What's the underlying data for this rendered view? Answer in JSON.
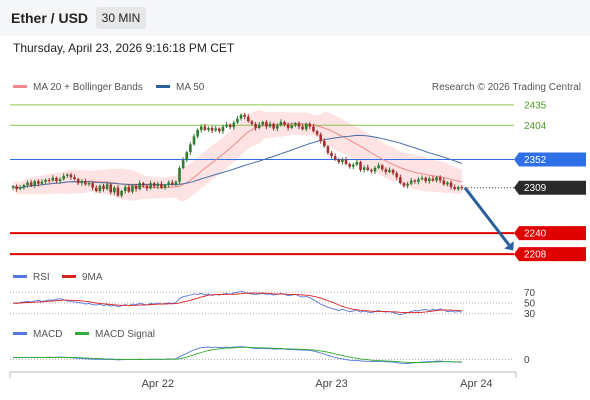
{
  "header": {
    "title": "Ether / USD",
    "timeframe": "30 MIN"
  },
  "datetime": "Thursday, April 23, 2026 9:16:18 PM CET",
  "attribution": "Research © 2026 Trading Central",
  "colors": {
    "resistance": "#8bc34a",
    "pivot": "#2f6fe8",
    "support": "#e00000",
    "last": "#2a2a2a",
    "ma20": "#f08a8a",
    "band": "#fde3e3",
    "ma50": "#4a6fa8",
    "bull": "#2f7d2f",
    "bear": "#a33030",
    "rsi": "#5577dd",
    "rsi_ma": "#dd2222",
    "macd": "#5577dd",
    "macd_signal": "#33aa33",
    "arrow": "#2a5f9e"
  },
  "chart_data": [
    {
      "type": "candlestick",
      "legend": [
        {
          "name": "MA 20 + Bollinger Bands",
          "color": "#f08a8a"
        },
        {
          "name": "MA 50",
          "color": "#2a5f9e"
        }
      ],
      "ylim": [
        2196,
        2447
      ],
      "x_ticks": [
        {
          "label": "Apr 22",
          "index": 40
        },
        {
          "label": "Apr 23",
          "index": 88
        },
        {
          "label": "Apr 24",
          "index": 128
        }
      ],
      "levels": [
        {
          "value": 2435,
          "label": "2435",
          "kind": "resistance"
        },
        {
          "value": 2404,
          "label": "2404",
          "kind": "resistance"
        },
        {
          "value": 2352,
          "label": "2352",
          "kind": "pivot"
        },
        {
          "value": 2309,
          "label": "2309",
          "kind": "last"
        },
        {
          "value": 2240,
          "label": "2240",
          "kind": "support"
        },
        {
          "value": 2208,
          "label": "2208",
          "kind": "support"
        }
      ],
      "close": [
        2311,
        2307,
        2309,
        2313,
        2317,
        2312,
        2319,
        2315,
        2318,
        2321,
        2320,
        2324,
        2319,
        2322,
        2327,
        2329,
        2325,
        2322,
        2316,
        2319,
        2314,
        2316,
        2309,
        2304,
        2312,
        2307,
        2314,
        2302,
        2309,
        2297,
        2304,
        2310,
        2303,
        2312,
        2307,
        2316,
        2312,
        2308,
        2316,
        2311,
        2315,
        2309,
        2313,
        2317,
        2314,
        2318,
        2339,
        2351,
        2363,
        2375,
        2387,
        2397,
        2402,
        2397,
        2400,
        2396,
        2399,
        2395,
        2402,
        2405,
        2401,
        2408,
        2414,
        2420,
        2417,
        2410,
        2406,
        2400,
        2405,
        2409,
        2402,
        2406,
        2399,
        2404,
        2409,
        2405,
        2400,
        2404,
        2407,
        2402,
        2398,
        2406,
        2402,
        2395,
        2390,
        2380,
        2372,
        2362,
        2357,
        2352,
        2348,
        2352,
        2345,
        2341,
        2344,
        2348,
        2336,
        2340,
        2336,
        2334,
        2339,
        2343,
        2337,
        2333,
        2336,
        2331,
        2325,
        2316,
        2312,
        2315,
        2320,
        2318,
        2322,
        2324,
        2319,
        2323,
        2320,
        2325,
        2320,
        2314,
        2317,
        2310,
        2307,
        2310,
        2309
      ],
      "bollinger": {
        "upper_offset_max": 26,
        "lower_offset_max": 26
      },
      "forecast_target": 2222
    },
    {
      "type": "line",
      "legend": [
        {
          "name": "RSI",
          "color": "#5577dd"
        },
        {
          "name": "9MA",
          "color": "#dd2222"
        }
      ],
      "ylim": [
        22,
        78
      ],
      "levels": [
        {
          "value": 70,
          "label": "70"
        },
        {
          "value": 50,
          "label": "50"
        },
        {
          "value": 30,
          "label": "30"
        }
      ],
      "rsi": [
        50,
        49,
        51,
        52,
        53,
        52,
        54,
        55,
        53,
        54,
        56,
        55,
        57,
        58,
        56,
        54,
        53,
        52,
        51,
        50,
        48,
        49,
        47,
        46,
        48,
        45,
        47,
        44,
        46,
        43,
        45,
        47,
        45,
        48,
        47,
        49,
        48,
        46,
        49,
        48,
        50,
        48,
        49,
        50,
        49,
        51,
        58,
        62,
        63,
        65,
        67,
        66,
        68,
        65,
        67,
        64,
        66,
        65,
        67,
        68,
        66,
        69,
        70,
        72,
        70,
        68,
        67,
        66,
        67,
        68,
        66,
        67,
        65,
        66,
        68,
        66,
        64,
        65,
        66,
        63,
        61,
        62,
        60,
        56,
        52,
        48,
        45,
        42,
        40,
        38,
        36,
        38,
        36,
        34,
        35,
        37,
        33,
        35,
        33,
        32,
        34,
        36,
        34,
        33,
        34,
        32,
        30,
        28,
        30,
        32,
        34,
        36,
        35,
        37,
        38,
        36,
        38,
        37,
        39,
        37,
        34,
        35,
        33,
        34,
        33
      ]
    },
    {
      "type": "line",
      "legend": [
        {
          "name": "MACD",
          "color": "#5577dd"
        },
        {
          "name": "MACD Signal",
          "color": "#33aa33"
        }
      ],
      "ylim": [
        -6,
        14
      ],
      "levels": [
        {
          "value": 0,
          "label": "0"
        }
      ],
      "macd": [
        1.5,
        1.4,
        1.3,
        1.4,
        1.5,
        1.4,
        1.5,
        1.6,
        1.5,
        1.6,
        1.7,
        1.6,
        1.7,
        1.8,
        1.7,
        1.5,
        1.3,
        1.1,
        0.9,
        0.8,
        0.6,
        0.5,
        0.3,
        0.2,
        0.3,
        0.1,
        0.2,
        0.0,
        0.1,
        -0.2,
        -0.1,
        0.1,
        0.0,
        0.2,
        0.1,
        0.3,
        0.2,
        0.1,
        0.3,
        0.2,
        0.3,
        0.2,
        0.3,
        0.4,
        0.5,
        0.6,
        2.0,
        3.2,
        4.5,
        5.8,
        6.9,
        7.8,
        8.6,
        8.8,
        9.0,
        8.7,
        8.9,
        8.6,
        8.8,
        8.9,
        8.7,
        8.9,
        9.1,
        9.2,
        9.0,
        8.6,
        8.3,
        8.0,
        8.0,
        8.1,
        7.8,
        7.9,
        7.6,
        7.6,
        7.7,
        7.5,
        7.2,
        7.1,
        7.1,
        6.9,
        6.7,
        6.8,
        6.6,
        6.1,
        5.5,
        4.7,
        3.9,
        3.1,
        2.3,
        1.5,
        0.9,
        0.6,
        0.1,
        -0.4,
        -0.6,
        -0.5,
        -1.0,
        -1.1,
        -1.3,
        -1.4,
        -1.3,
        -1.2,
        -1.4,
        -1.6,
        -1.6,
        -1.8,
        -2.1,
        -2.6,
        -2.9,
        -2.8,
        -2.5,
        -2.3,
        -2.0,
        -1.7,
        -1.6,
        -1.4,
        -1.3,
        -1.1,
        -1.1,
        -1.3,
        -1.4,
        -1.6,
        -1.8,
        -1.8,
        -1.9
      ],
      "signal": [
        1.4,
        1.4,
        1.4,
        1.4,
        1.4,
        1.4,
        1.4,
        1.5,
        1.5,
        1.5,
        1.5,
        1.5,
        1.6,
        1.6,
        1.6,
        1.6,
        1.5,
        1.5,
        1.4,
        1.3,
        1.2,
        1.1,
        1.0,
        0.8,
        0.7,
        0.6,
        0.5,
        0.4,
        0.3,
        0.2,
        0.2,
        0.1,
        0.1,
        0.1,
        0.1,
        0.1,
        0.1,
        0.2,
        0.2,
        0.2,
        0.2,
        0.2,
        0.2,
        0.2,
        0.3,
        0.3,
        0.6,
        1.1,
        1.8,
        2.6,
        3.4,
        4.3,
        5.1,
        5.8,
        6.5,
        7.0,
        7.4,
        7.7,
        8.0,
        8.2,
        8.3,
        8.4,
        8.6,
        8.7,
        8.8,
        8.8,
        8.7,
        8.6,
        8.5,
        8.4,
        8.3,
        8.2,
        8.1,
        8.0,
        7.9,
        7.8,
        7.7,
        7.6,
        7.5,
        7.4,
        7.3,
        7.2,
        7.1,
        6.9,
        6.6,
        6.2,
        5.8,
        5.3,
        4.7,
        4.1,
        3.5,
        2.9,
        2.3,
        1.8,
        1.3,
        0.9,
        0.5,
        0.2,
        -0.1,
        -0.4,
        -0.6,
        -0.7,
        -0.8,
        -1.0,
        -1.1,
        -1.2,
        -1.4,
        -1.6,
        -1.8,
        -2.0,
        -2.1,
        -2.1,
        -2.1,
        -2.0,
        -2.0,
        -1.9,
        -1.8,
        -1.7,
        -1.6,
        -1.5,
        -1.5,
        -1.5,
        -1.6,
        -1.6,
        -1.6
      ]
    }
  ]
}
